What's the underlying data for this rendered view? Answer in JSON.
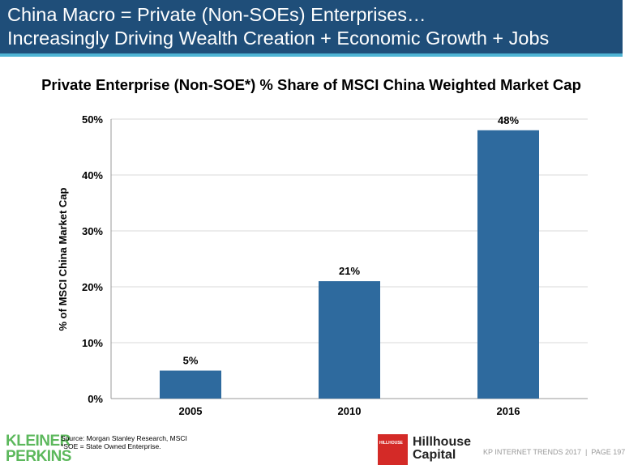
{
  "header": {
    "line1": "China Macro = Private (Non-SOEs) Enterprises…",
    "line2": "Increasingly Driving Wealth Creation + Economic Growth + Jobs"
  },
  "chart_data": {
    "type": "bar",
    "title": "Private Enterprise (Non-SOE*) % Share of MSCI China Weighted Market Cap",
    "xlabel": "",
    "ylabel": "% of MSCI China Market Cap",
    "categories": [
      "2005",
      "2010",
      "2016"
    ],
    "values": [
      5,
      21,
      48
    ],
    "data_labels": [
      "5%",
      "21%",
      "48%"
    ],
    "ylim": [
      0,
      50
    ],
    "yticks": [
      0,
      10,
      20,
      30,
      40,
      50
    ],
    "ytick_labels": [
      "0%",
      "10%",
      "20%",
      "30%",
      "40%",
      "50%"
    ],
    "grid": true,
    "bar_color": "#2e6a9e"
  },
  "footer": {
    "logo_left_line1": "KLEINER",
    "logo_left_line2": "PERKINS",
    "source": "Source: Morgan Stanley Research, MSCI",
    "note": "*SOE = State Owned Enterprise.",
    "logo_right_badge": "HILLHOUSE",
    "logo_right_line1": "Hillhouse",
    "logo_right_line2": "Capital",
    "page_info": "KP INTERNET TRENDS 2017  |  PAGE 197"
  }
}
